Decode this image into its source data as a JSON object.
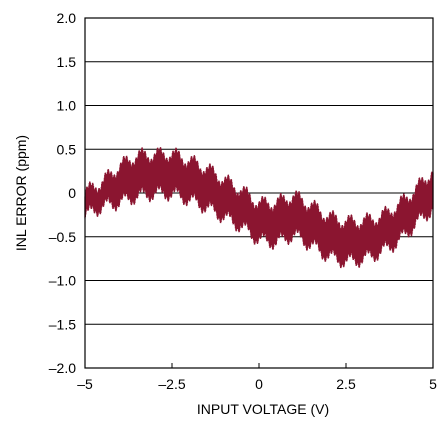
{
  "chart_data": {
    "type": "line",
    "title": "",
    "xlabel": "INPUT VOLTAGE (V)",
    "ylabel": "INL ERROR (ppm)",
    "xlim": [
      -5,
      5
    ],
    "ylim": [
      -2.0,
      2.0
    ],
    "grid": "horizontal",
    "x_ticks": [
      -5,
      -2.5,
      0,
      2.5,
      5
    ],
    "x_tick_labels": [
      "–5",
      "–2.5",
      "0",
      "2.5",
      "5"
    ],
    "y_ticks": [
      2.0,
      1.5,
      1.0,
      0.5,
      0,
      -0.5,
      -1.0,
      -1.5,
      -2.0
    ],
    "y_tick_labels": [
      "2.0",
      "1.5",
      "1.0",
      "0.5",
      "0",
      "–0.5",
      "–1.0",
      "–1.5",
      "–2.0"
    ],
    "colors": {
      "series": "#8b1530"
    },
    "series": [
      {
        "x": [
          -5.0,
          -4.5,
          -4.0,
          -3.5,
          -3.0,
          -2.5,
          -2.0,
          -1.5,
          -1.0,
          -0.5,
          0.0,
          0.5,
          1.0,
          1.5,
          2.0,
          2.5,
          3.0,
          3.5,
          4.0,
          4.5,
          5.0
        ],
        "y_upper": [
          0.0,
          0.12,
          0.3,
          0.42,
          0.43,
          0.44,
          0.36,
          0.27,
          0.14,
          0.02,
          -0.13,
          -0.12,
          -0.04,
          -0.15,
          -0.28,
          -0.34,
          -0.33,
          -0.28,
          -0.15,
          0.03,
          0.25
        ],
        "y_lower": [
          -0.25,
          -0.15,
          -0.1,
          -0.03,
          0.0,
          0.0,
          -0.07,
          -0.16,
          -0.27,
          -0.38,
          -0.53,
          -0.56,
          -0.47,
          -0.59,
          -0.72,
          -0.78,
          -0.75,
          -0.67,
          -0.55,
          -0.35,
          -0.17
        ]
      }
    ]
  }
}
